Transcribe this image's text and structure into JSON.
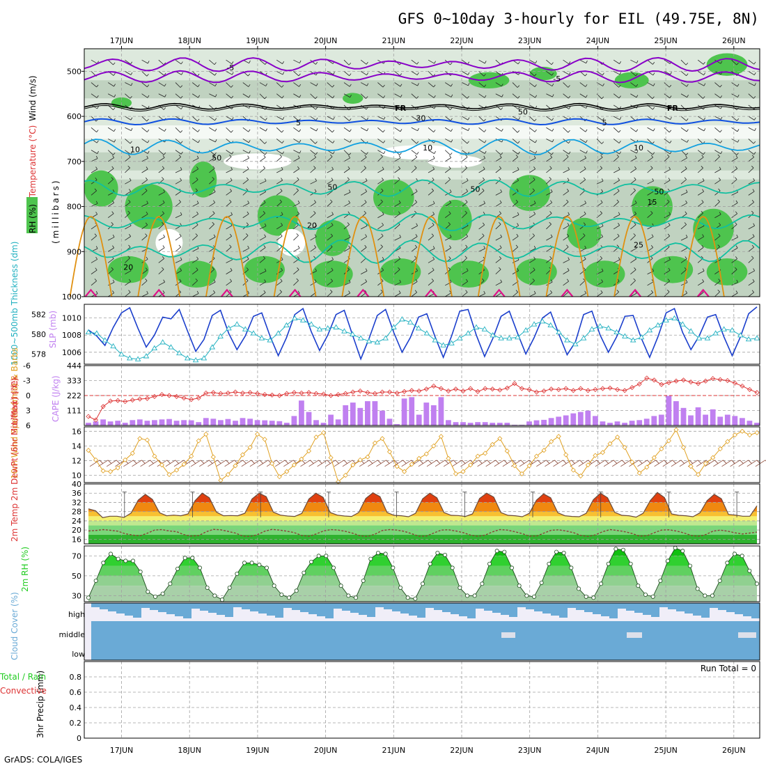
{
  "title": "GFS 0~10day 3-hourly for EIL (49.75E, 8N)",
  "footer": "GrADS: COLA/IGES",
  "dates": [
    "17JUN",
    "18JUN",
    "19JUN",
    "20JUN",
    "21JUN",
    "22JUN",
    "23JUN",
    "24JUN",
    "25JUN",
    "26JUN"
  ],
  "colors": {
    "frame": "#000000",
    "grid": "#a0a0a0",
    "rh_green": "#4ec44e",
    "rh_light": "#dde9dd",
    "rh_mid": "#b4c8b4",
    "purple": "#8800c8",
    "black": "#000000",
    "blue": "#1050e0",
    "cyan": "#10a0e0",
    "teal": "#10c0a0",
    "orange": "#e09010",
    "magenta": "#e0108a",
    "slp": "#1a3ecc",
    "thick": "#20b0c0",
    "li": "#dd3333",
    "cape": "#c080f0",
    "wind10": "#e0a020",
    "temp_hot": "#e83000",
    "dew": "#884433",
    "rh2m": "#22cc22",
    "cloud": "#6aaad6",
    "cloud_bg": "#f0eef8"
  },
  "chart_data": [
    {
      "type": "contour",
      "name": "upper-air",
      "ylabel_parts": [
        "RH (%)",
        "Temperature (°C)",
        "Wind (m/s)"
      ],
      "ylabel_units": "(millibars)",
      "yticks": [
        500,
        600,
        700,
        800,
        900,
        1000
      ],
      "ylim": [
        1000,
        450
      ],
      "contour_labels": [
        {
          "text": "-5",
          "day": 2.1,
          "p": 490
        },
        {
          "text": "-5",
          "day": 6.9,
          "p": 515
        },
        {
          "text": "FR",
          "day": 4.6,
          "p": 580
        },
        {
          "text": "FR",
          "day": 8.6,
          "p": 580
        },
        {
          "text": "5",
          "day": 3.1,
          "p": 612
        },
        {
          "text": "5",
          "day": 7.6,
          "p": 612
        },
        {
          "text": "10",
          "day": 0.7,
          "p": 672
        },
        {
          "text": "10",
          "day": 5.0,
          "p": 668
        },
        {
          "text": "10",
          "day": 8.1,
          "p": 668
        },
        {
          "text": "15",
          "day": 8.3,
          "p": 788
        },
        {
          "text": "20",
          "day": 3.3,
          "p": 840
        },
        {
          "text": "20",
          "day": 0.6,
          "p": 933
        },
        {
          "text": "25",
          "day": 8.1,
          "p": 883
        },
        {
          "text": "30",
          "day": 4.9,
          "p": 602
        },
        {
          "text": "50",
          "day": 6.4,
          "p": 588
        },
        {
          "text": "50",
          "day": 3.6,
          "p": 755
        },
        {
          "text": "50",
          "day": 1.9,
          "p": 690
        },
        {
          "text": "50",
          "day": 5.7,
          "p": 760
        },
        {
          "text": "50",
          "day": 8.4,
          "p": 765
        }
      ]
    },
    {
      "type": "line",
      "name": "slp-thickness",
      "left_label": "1000~500mb Thickness (dm)",
      "right_label": "SLP (mb)",
      "left_ticks": [
        578,
        580,
        582
      ],
      "right_ticks": [
        1006,
        1008,
        1010
      ],
      "ylim_slp": [
        1004.6,
        1011.6
      ],
      "ylim_thick": [
        577,
        583
      ],
      "series": [
        {
          "name": "SLP (mb)",
          "marker": "none",
          "values": [
            1008.6,
            1007.9,
            1006.8,
            1008.9,
            1010.6,
            1011.2,
            1008.8,
            1006.6,
            1008.0,
            1010.1,
            1009.9,
            1011.0,
            1008.5,
            1006.1,
            1007.5,
            1010.3,
            1010.9,
            1008.2,
            1006.3,
            1007.9,
            1010.2,
            1010.6,
            1007.9,
            1005.6,
            1007.7,
            1010.4,
            1011.1,
            1008.4,
            1006.2,
            1008.0,
            1010.4,
            1010.9,
            1008.0,
            1005.2,
            1007.6,
            1010.3,
            1011.0,
            1008.3,
            1006.0,
            1007.7,
            1010.1,
            1010.5,
            1007.8,
            1005.4,
            1007.9,
            1010.8,
            1011.0,
            1008.0,
            1005.5,
            1007.6,
            1010.2,
            1010.8,
            1008.2,
            1005.8,
            1007.7,
            1010.0,
            1010.7,
            1008.1,
            1005.7,
            1007.2,
            1010.4,
            1010.8,
            1008.0,
            1006.0,
            1007.8,
            1010.2,
            1010.3,
            1007.6,
            1005.4,
            1007.8,
            1010.6,
            1011.1,
            1008.3,
            1006.3,
            1007.9,
            1010.1,
            1010.4,
            1007.8,
            1005.6,
            1007.8,
            1010.5,
            1011.3
          ]
        },
        {
          "name": "Thickness (dm)",
          "marker": "triangle",
          "values": [
            580.2,
            580.1,
            579.4,
            578.8,
            578.0,
            577.6,
            577.5,
            577.8,
            578.6,
            579.2,
            578.7,
            578.1,
            577.6,
            577.4,
            577.6,
            578.7,
            579.8,
            580.6,
            581.0,
            580.5,
            580.1,
            579.6,
            579.4,
            580.1,
            580.9,
            581.6,
            581.4,
            581.0,
            580.5,
            580.6,
            580.7,
            580.3,
            580.0,
            579.6,
            579.3,
            579.2,
            579.6,
            580.7,
            581.5,
            581.2,
            580.6,
            580.1,
            579.4,
            578.9,
            579.1,
            579.6,
            580.1,
            580.7,
            580.5,
            579.9,
            579.6,
            579.6,
            579.7,
            580.4,
            581.0,
            581.3,
            580.9,
            580.2,
            579.4,
            579.0,
            579.6,
            580.5,
            580.8,
            580.6,
            580.2,
            579.8,
            579.4,
            579.7,
            580.4,
            580.9,
            581.4,
            581.6,
            581.0,
            580.3,
            579.6,
            579.6,
            580.1,
            580.5,
            580.4,
            579.9,
            579.5,
            579.6
          ]
        }
      ]
    },
    {
      "type": "bar-line",
      "name": "li-cape",
      "left_label": "Lifted Index",
      "right_label": "CAPE (J/kg)",
      "li_ticks": [
        -6,
        -3,
        0,
        3,
        6
      ],
      "li_tick_labels": [
        "-6",
        "-3",
        "0",
        "3",
        "6"
      ],
      "cape_ticks": [
        111,
        222,
        333,
        444
      ],
      "cape_max": 444,
      "series": [
        {
          "name": "Lifted Index",
          "marker": "diamond",
          "values": [
            4.2,
            4.9,
            2.2,
            1.1,
            1.0,
            1.2,
            0.9,
            0.7,
            0.6,
            0.2,
            -0.2,
            0.0,
            0.2,
            0.5,
            0.8,
            0.5,
            -0.5,
            -0.6,
            -0.4,
            -0.5,
            -0.7,
            -0.5,
            -0.6,
            -0.4,
            -0.2,
            -0.1,
            0.0,
            -0.4,
            -0.6,
            -0.5,
            -0.6,
            -0.4,
            -0.3,
            0.0,
            -0.2,
            -0.4,
            -0.7,
            -0.9,
            -0.6,
            -0.4,
            -0.7,
            -0.7,
            -0.5,
            -0.8,
            -1.0,
            -0.9,
            -1.3,
            -1.9,
            -1.4,
            -0.9,
            -1.3,
            -0.9,
            -1.4,
            -0.8,
            -1.4,
            -1.3,
            -1.1,
            -1.5,
            -2.4,
            -1.4,
            -1.2,
            -0.7,
            -0.9,
            -1.3,
            -1.2,
            -1.4,
            -1.0,
            -1.4,
            -1.0,
            -1.2,
            -1.4,
            -1.5,
            -1.2,
            -1.0,
            -1.6,
            -2.3,
            -3.5,
            -3.1,
            -2.2,
            -2.6,
            -2.9,
            -3.1,
            -2.7,
            -2.4,
            -2.9,
            -3.4,
            -3.2,
            -3.0,
            -2.5,
            -1.9,
            -1.2,
            -0.6
          ]
        },
        {
          "name": "CAPE (J/kg)",
          "marker": "bar",
          "values": [
            20,
            30,
            45,
            30,
            35,
            20,
            40,
            45,
            35,
            40,
            45,
            48,
            35,
            40,
            38,
            25,
            55,
            50,
            40,
            48,
            35,
            55,
            50,
            40,
            38,
            35,
            32,
            20,
            70,
            185,
            100,
            40,
            20,
            80,
            45,
            150,
            170,
            130,
            180,
            180,
            110,
            50,
            10,
            200,
            210,
            80,
            170,
            150,
            210,
            40,
            25,
            25,
            20,
            25,
            25,
            20,
            20,
            20,
            5,
            5,
            30,
            38,
            42,
            55,
            65,
            75,
            90,
            100,
            110,
            70,
            30,
            20,
            30,
            20,
            35,
            40,
            50,
            70,
            80,
            220,
            180,
            130,
            75,
            135,
            80,
            120,
            65,
            80,
            70,
            55,
            35,
            20
          ]
        }
      ]
    },
    {
      "type": "line",
      "name": "wind10m",
      "ylabel": "10m Wind Speed (m/s) & Barbs",
      "yticks": [
        10,
        12,
        14,
        16
      ],
      "ylim": [
        9,
        16.6
      ],
      "series": [
        {
          "name": "10m Wind Speed (m/s)",
          "marker": "diamond",
          "values": [
            13.4,
            12.1,
            10.6,
            10.5,
            11.0,
            12.1,
            13.0,
            15.0,
            14.8,
            12.6,
            11.4,
            10.1,
            10.7,
            11.5,
            12.6,
            14.7,
            15.6,
            12.5,
            9.3,
            10.1,
            11.3,
            12.8,
            13.8,
            15.6,
            14.9,
            11.6,
            9.8,
            10.5,
            11.4,
            12.2,
            13.3,
            15.2,
            15.8,
            12.4,
            9.1,
            10.0,
            11.4,
            12.1,
            12.5,
            14.4,
            15.0,
            13.2,
            11.2,
            10.5,
            11.5,
            12.3,
            12.9,
            14.0,
            15.3,
            12.3,
            10.2,
            10.5,
            11.4,
            12.6,
            13.0,
            14.2,
            15.0,
            13.3,
            11.3,
            10.2,
            11.3,
            12.6,
            13.4,
            14.6,
            15.3,
            12.8,
            10.7,
            9.9,
            11.4,
            12.7,
            13.1,
            14.3,
            15.2,
            13.8,
            11.8,
            10.3,
            11.1,
            12.4,
            13.6,
            14.7,
            16.2,
            13.8,
            11.2,
            10.1,
            11.6,
            12.4,
            13.6,
            14.6,
            15.5,
            16.0,
            15.5,
            15.8
          ]
        }
      ]
    },
    {
      "type": "line",
      "name": "temp2m",
      "ylabel": "2m Temp 2m DewPt (6hr Min/Max) (°C)",
      "yticks": [
        16,
        20,
        24,
        28,
        32,
        36,
        40
      ],
      "ylim": [
        14,
        40
      ],
      "series": [
        {
          "name": "2m Temp",
          "marker": "none",
          "values": [
            29.2,
            28.4,
            25.4,
            26.0,
            26.0,
            25.5,
            27.4,
            33.0,
            35.5,
            33.3,
            27.5,
            26.2,
            26.5,
            26.2,
            27.0,
            32.8,
            36.0,
            34.0,
            27.8,
            26.2,
            26.3,
            26.2,
            27.3,
            33.5,
            36.0,
            34.5,
            27.8,
            26.5,
            26.1,
            25.9,
            27.2,
            33.5,
            36.0,
            34.2,
            27.6,
            26.5,
            26.1,
            25.9,
            27.6,
            33.7,
            36.2,
            34.5,
            27.6,
            26.4,
            26.2,
            25.8,
            27.3,
            33.6,
            36.0,
            34.0,
            27.6,
            26.4,
            26.3,
            25.9,
            27.0,
            33.7,
            36.0,
            34.3,
            27.6,
            26.4,
            26.2,
            25.8,
            27.3,
            33.0,
            35.7,
            34.0,
            27.5,
            26.2,
            25.9,
            25.8,
            27.3,
            33.2,
            36.0,
            34.0,
            27.7,
            26.4,
            26.2,
            25.6,
            27.3,
            32.8,
            36.3,
            34.1,
            27.0,
            26.4,
            26.2,
            25.8,
            27.5,
            32.8,
            35.5,
            33.6,
            26.8,
            26.5,
            26.0,
            26.0,
            30.5
          ]
        },
        {
          "name": "2m DewPt",
          "marker": "dash",
          "values": [
            19.6,
            19.8,
            20.2,
            19.9,
            19.5,
            18.4,
            17.8,
            17.5,
            18.6,
            20.0,
            20.2,
            19.6,
            19.3,
            18.0,
            17.4,
            17.6,
            19.2,
            20.3,
            20.1,
            19.4,
            18.7,
            17.4,
            17.2,
            18.0,
            19.5,
            20.3,
            20.0,
            19.5,
            18.9,
            17.7,
            17.3,
            18.3,
            19.6,
            20.2,
            20.0,
            19.4,
            18.6,
            17.5,
            17.2,
            18.2,
            19.8,
            20.2,
            20.0,
            19.4,
            18.4,
            17.3,
            17.4,
            18.7,
            20.0,
            20.1,
            19.6,
            18.9,
            17.8,
            17.3,
            17.8,
            19.2,
            20.2,
            20.0,
            19.3,
            18.5,
            17.4,
            17.4,
            18.7,
            19.9,
            20.1,
            19.6,
            18.9,
            17.7,
            17.2,
            17.9,
            19.3,
            20.2,
            19.8,
            19.3,
            18.5,
            17.4,
            17.5,
            18.8,
            20.0,
            20.1,
            19.6,
            18.8,
            17.7,
            17.3,
            18.0,
            19.5,
            20.0,
            19.5,
            18.8,
            18.3,
            18.7,
            19.1
          ]
        }
      ]
    },
    {
      "type": "area",
      "name": "rh2m",
      "ylabel": "2m RH (%)",
      "yticks": [
        30,
        50,
        70
      ],
      "ylim": [
        24,
        80
      ],
      "series": [
        {
          "name": "2m RH (%)",
          "marker": "circle",
          "values": [
            28,
            45,
            63,
            72,
            67,
            65,
            65,
            54,
            34,
            29,
            32,
            42,
            57,
            68,
            68,
            58,
            38,
            30,
            26,
            38,
            52,
            63,
            63,
            61,
            58,
            40,
            31,
            28,
            35,
            53,
            64,
            70,
            70,
            58,
            40,
            30,
            28,
            45,
            67,
            73,
            72,
            58,
            38,
            28,
            27,
            42,
            62,
            73,
            71,
            58,
            38,
            30,
            30,
            42,
            62,
            75,
            74,
            58,
            40,
            30,
            29,
            43,
            62,
            74,
            73,
            58,
            37,
            29,
            28,
            42,
            62,
            77,
            76,
            62,
            40,
            31,
            29,
            45,
            65,
            78,
            75,
            60,
            37,
            30,
            30,
            45,
            63,
            72,
            70,
            55,
            42
          ]
        }
      ]
    },
    {
      "type": "area",
      "name": "cloud",
      "ylabel": "Cloud Cover (%)",
      "layers": [
        "high",
        "middle",
        "low"
      ]
    },
    {
      "type": "bar",
      "name": "precip",
      "ylabel": "3hr Precip (mm)",
      "left_labels": [
        "Total / Rain",
        "Convective"
      ],
      "run_total": "Run Total = 0",
      "yticks": [
        0,
        0.2,
        0.4,
        0.6,
        0.8
      ],
      "ytick_labels": [
        "0",
        "0.2",
        "0.4",
        "0.6",
        "0.8"
      ],
      "ylim": [
        0,
        1.0
      ],
      "values": []
    }
  ]
}
